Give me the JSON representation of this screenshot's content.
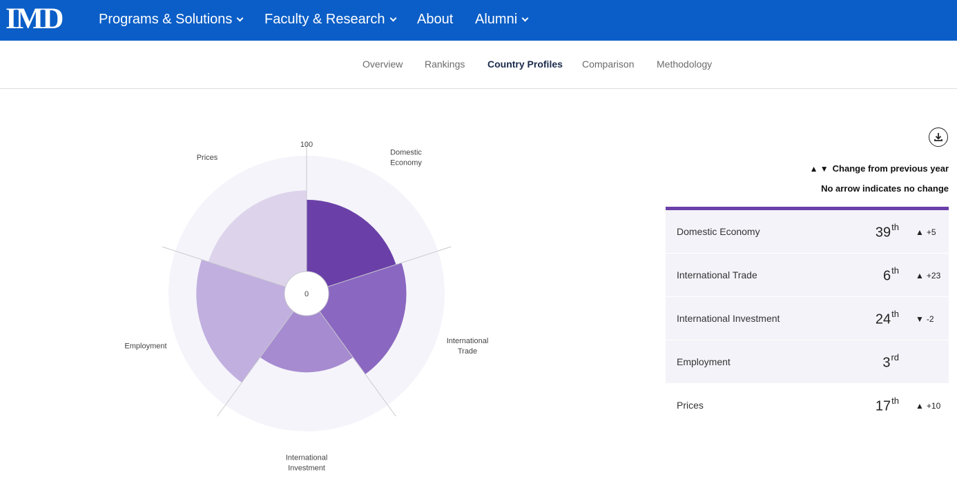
{
  "header": {
    "logo_text": "IMD",
    "nav": [
      {
        "label": "Programs & Solutions",
        "has_dropdown": true
      },
      {
        "label": "Faculty & Research",
        "has_dropdown": true
      },
      {
        "label": "About",
        "has_dropdown": false
      },
      {
        "label": "Alumni",
        "has_dropdown": true
      }
    ],
    "background_color": "#0b5ec7"
  },
  "subnav": {
    "items": [
      {
        "label": "Overview",
        "active": false
      },
      {
        "label": "Rankings",
        "active": false
      },
      {
        "label": "Country Profiles",
        "active": true
      },
      {
        "label": "Comparison",
        "active": false
      },
      {
        "label": "Methodology",
        "active": false
      }
    ]
  },
  "chart_data": {
    "type": "polar-area",
    "scale_min_label": "0",
    "scale_max_label": "100",
    "categories": [
      "Domestic Economy",
      "International Trade",
      "International Investment",
      "Employment",
      "Prices"
    ],
    "category_label_lines": [
      [
        "Domestic",
        "Economy"
      ],
      [
        "International",
        "Trade"
      ],
      [
        "International",
        "Investment"
      ],
      [
        "Employment"
      ],
      [
        "Prices"
      ]
    ],
    "values": [
      62,
      67,
      49,
      76,
      70
    ],
    "colors": [
      "#6a40a8",
      "#8a67c0",
      "#a68bd0",
      "#c0afdf",
      "#ddd4ec"
    ],
    "background_color": "#f5f4fa"
  },
  "panel": {
    "download_icon": "download-icon",
    "legend_arrows": "▲ ▼",
    "legend_text": "Change from previous year",
    "legend_note": "No arrow indicates no change",
    "accent_color": "#6a40a8",
    "rows": [
      {
        "name": "Domestic Economy",
        "rank": "39",
        "suffix": "th",
        "arrow": "▲",
        "change": "+5"
      },
      {
        "name": "International Trade",
        "rank": "6",
        "suffix": "th",
        "arrow": "▲",
        "change": "+23"
      },
      {
        "name": "International Investment",
        "rank": "24",
        "suffix": "th",
        "arrow": "▼",
        "change": "-2"
      },
      {
        "name": "Employment",
        "rank": "3",
        "suffix": "rd",
        "arrow": "",
        "change": ""
      },
      {
        "name": "Prices",
        "rank": "17",
        "suffix": "th",
        "arrow": "▲",
        "change": "+10"
      }
    ]
  }
}
